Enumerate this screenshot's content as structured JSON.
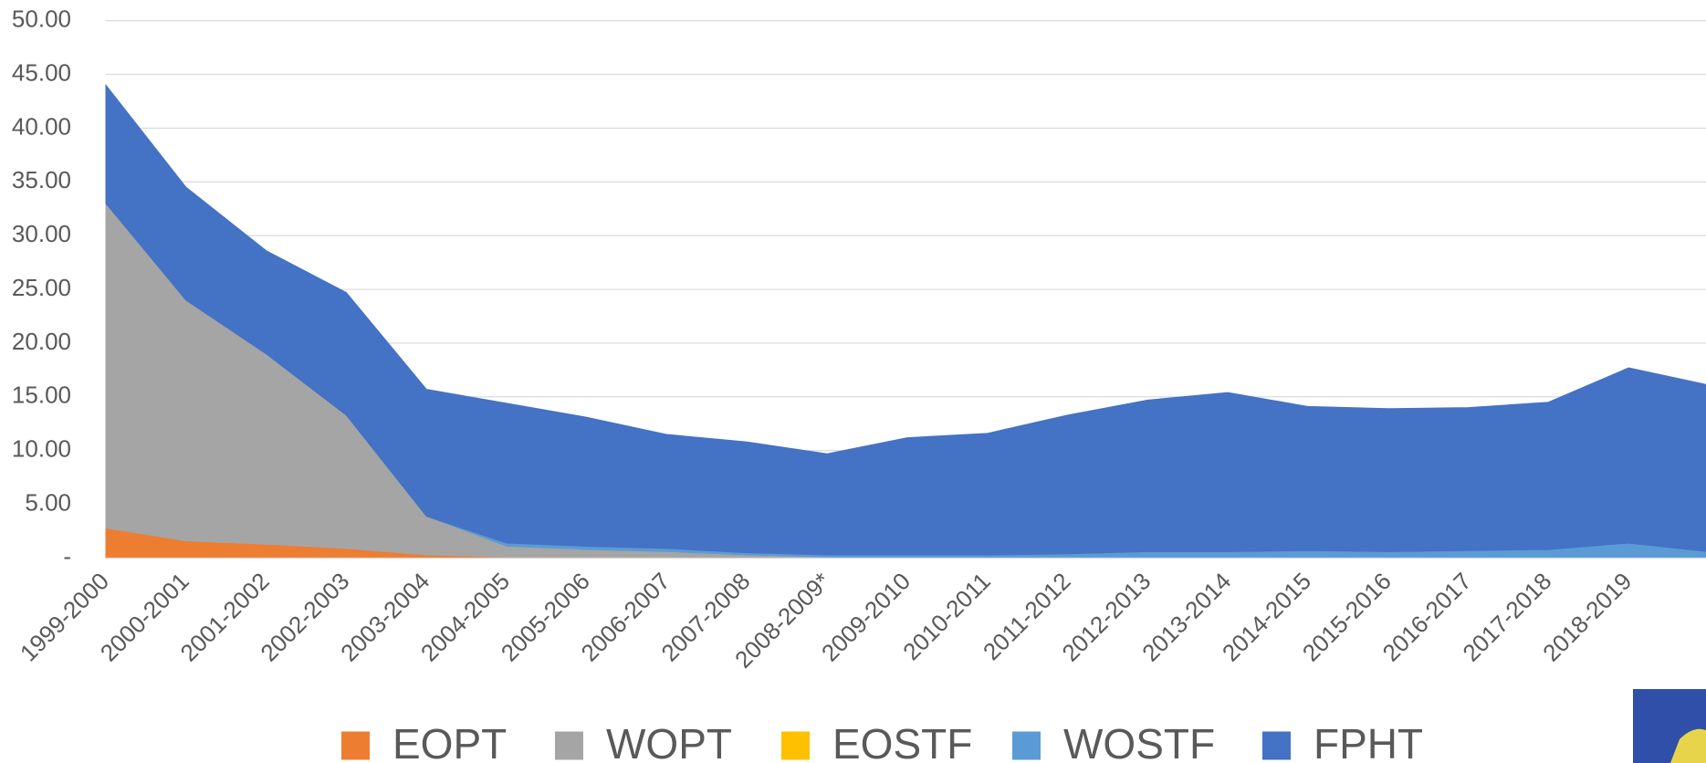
{
  "chart_data": {
    "type": "stacked_area",
    "categories": [
      "1999-2000",
      "2000-2001",
      "2001-2002",
      "2002-2003",
      "2003-2004",
      "2004-2005",
      "2005-2006",
      "2006-2007",
      "2007-2008",
      "2008-2009*",
      "2009-2010",
      "2010-2011",
      "2011-2012",
      "2012-2013",
      "2013-2014",
      "2014-2015",
      "2015-2016",
      "2016-2017",
      "2017-2018",
      "2018-2019",
      null
    ],
    "series": [
      {
        "name": "EOPT",
        "color": "#ed7d31",
        "values": [
          2.8,
          1.6,
          1.3,
          0.9,
          0.3,
          0.1,
          0.1,
          0.1,
          0,
          0,
          0,
          0,
          0,
          0,
          0,
          0,
          0,
          0,
          0,
          0,
          0
        ]
      },
      {
        "name": "WOPT",
        "color": "#a5a5a5",
        "values": [
          30.2,
          22.4,
          17.7,
          12.4,
          3.6,
          1.0,
          0.7,
          0.5,
          0.3,
          0.1,
          0,
          0,
          0,
          0,
          0,
          0,
          0,
          0,
          0,
          0,
          0
        ]
      },
      {
        "name": "EOSTF",
        "color": "#ffc000",
        "values": [
          0,
          0,
          0,
          0,
          0,
          0,
          0,
          0,
          0,
          0,
          0,
          0,
          0,
          0,
          0,
          0,
          0,
          0,
          0,
          0,
          0
        ]
      },
      {
        "name": "WOSTF",
        "color": "#5b9bd5",
        "values": [
          0,
          0,
          0,
          0,
          0,
          0.3,
          0.3,
          0.3,
          0.2,
          0.2,
          0.3,
          0.3,
          0.4,
          0.6,
          0.6,
          0.7,
          0.6,
          0.7,
          0.8,
          1.4,
          0.6
        ]
      },
      {
        "name": "FPHT",
        "color": "#4472c4",
        "values": [
          11.0,
          10.5,
          9.6,
          11.4,
          11.8,
          13.0,
          12.0,
          10.6,
          10.3,
          9.4,
          10.9,
          11.3,
          12.9,
          14.1,
          14.8,
          13.4,
          13.3,
          13.3,
          13.7,
          16.3,
          15.5
        ]
      }
    ],
    "ylim": [
      0,
      50
    ],
    "yticks": [
      {
        "value": 0,
        "label": "-"
      },
      {
        "value": 5,
        "label": "5.00"
      },
      {
        "value": 10,
        "label": "10.00"
      },
      {
        "value": 15,
        "label": "15.00"
      },
      {
        "value": 20,
        "label": "20.00"
      },
      {
        "value": 25,
        "label": "25.00"
      },
      {
        "value": 30,
        "label": "30.00"
      },
      {
        "value": 35,
        "label": "35.00"
      },
      {
        "value": 40,
        "label": "40.00"
      },
      {
        "value": 45,
        "label": "45.00"
      },
      {
        "value": 50,
        "label": "50.00"
      }
    ],
    "grid": true,
    "legend": "bottom"
  }
}
